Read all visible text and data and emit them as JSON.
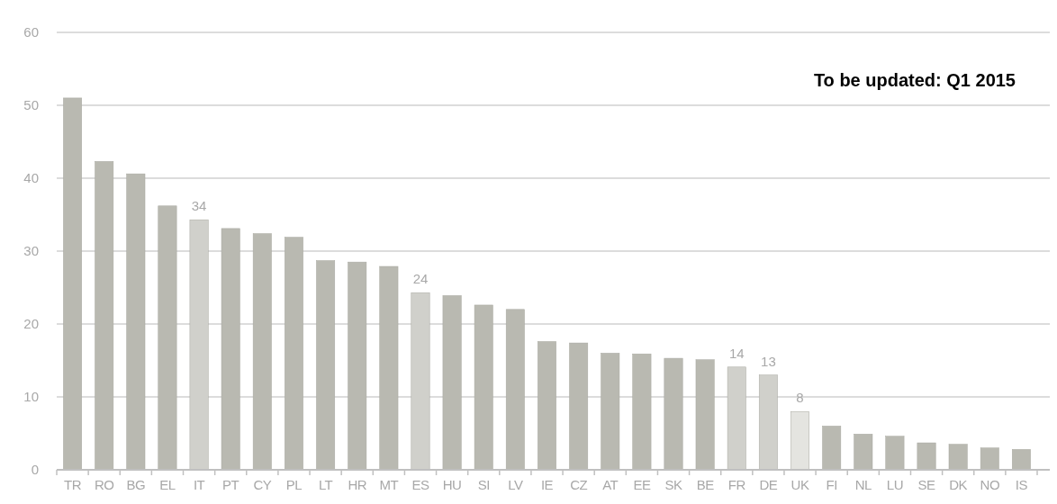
{
  "chart_data": {
    "type": "bar",
    "categories": [
      "TR",
      "RO",
      "BG",
      "EL",
      "IT",
      "PT",
      "CY",
      "PL",
      "LT",
      "HR",
      "MT",
      "ES",
      "HU",
      "SI",
      "LV",
      "IE",
      "CZ",
      "AT",
      "EE",
      "SK",
      "BE",
      "FR",
      "DE",
      "UK",
      "FI",
      "NL",
      "LU",
      "SE",
      "DK",
      "NO",
      "IS"
    ],
    "values": [
      51.0,
      42.3,
      40.6,
      36.2,
      34.3,
      33.1,
      32.4,
      31.9,
      28.7,
      28.5,
      27.9,
      24.3,
      23.9,
      22.6,
      22.0,
      17.6,
      17.4,
      16.0,
      15.9,
      15.3,
      15.1,
      14.1,
      13.0,
      8.0,
      6.0,
      4.9,
      4.6,
      3.7,
      3.5,
      3.0,
      2.8
    ],
    "colors": [
      "#b9b9b1",
      "#b9b9b1",
      "#b9b9b1",
      "#b9b9b1",
      "#d0d0cb",
      "#b9b9b1",
      "#b9b9b1",
      "#b9b9b1",
      "#b9b9b1",
      "#b9b9b1",
      "#b9b9b1",
      "#d0d0cb",
      "#b9b9b1",
      "#b9b9b1",
      "#b9b9b1",
      "#b9b9b1",
      "#b9b9b1",
      "#b9b9b1",
      "#b9b9b1",
      "#b9b9b1",
      "#b9b9b1",
      "#d0d0cb",
      "#d0d0cb",
      "#e4e4e0",
      "#b9b9b1",
      "#b9b9b1",
      "#b9b9b1",
      "#b9b9b1",
      "#b9b9b1",
      "#b9b9b1",
      "#b9b9b1"
    ],
    "value_labels": [
      null,
      null,
      null,
      null,
      "34",
      null,
      null,
      null,
      null,
      null,
      null,
      "24",
      null,
      null,
      null,
      null,
      null,
      null,
      null,
      null,
      null,
      "14",
      "13",
      "8",
      null,
      null,
      null,
      null,
      null,
      null,
      null
    ],
    "ylim": [
      0,
      60
    ],
    "yticks": [
      0,
      10,
      20,
      30,
      40,
      50,
      60
    ],
    "grid": "y",
    "annotations": [
      "To be updated: Q1 2015"
    ]
  }
}
